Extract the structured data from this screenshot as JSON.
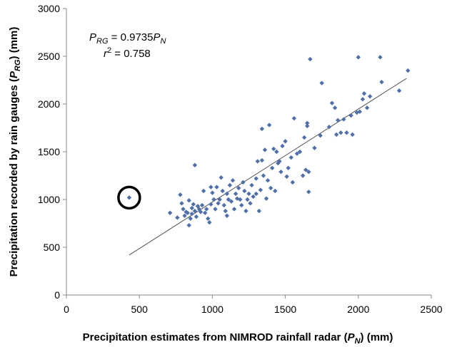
{
  "chart_data": {
    "type": "scatter",
    "xlabel": {
      "pre": "Precipitation estimates from NIMROD rainfall radar (",
      "var": "P",
      "sub": "N",
      "post": ") (mm)"
    },
    "ylabel": {
      "pre": "Precipitation recorded by rain gauges (",
      "var": "P",
      "sub": "RG",
      "post": ") (mm)"
    },
    "xlim": [
      0,
      2500
    ],
    "ylim": [
      0,
      3000
    ],
    "xticks": [
      "0",
      "500",
      "1000",
      "1500",
      "2000",
      "2500"
    ],
    "yticks": [
      "0",
      "500",
      "1000",
      "1500",
      "2000",
      "2500",
      "3000"
    ],
    "grid": false,
    "legend": "none",
    "marker": "diamond",
    "marker_color": "#4F6FA8",
    "equation": {
      "lhs_var": "P",
      "lhs_sub": "RG",
      "middle": " = 0.9735",
      "rhs_var": "P",
      "rhs_sub": "N",
      "r_var": "r",
      "r_sup": "2",
      "r_value": " = 0.758"
    },
    "trendline": {
      "slope": 0.9735,
      "x_start": 430,
      "x_end": 2330,
      "color": "#555555"
    },
    "highlight": {
      "x": 430,
      "y": 1020,
      "shape": "circle"
    },
    "points": [
      [
        430,
        1020
      ],
      [
        710,
        860
      ],
      [
        760,
        810
      ],
      [
        780,
        1050
      ],
      [
        790,
        960
      ],
      [
        800,
        900
      ],
      [
        810,
        830
      ],
      [
        820,
        870
      ],
      [
        830,
        860
      ],
      [
        840,
        730
      ],
      [
        840,
        990
      ],
      [
        850,
        800
      ],
      [
        860,
        910
      ],
      [
        860,
        850
      ],
      [
        870,
        950
      ],
      [
        880,
        880
      ],
      [
        880,
        1360
      ],
      [
        890,
        820
      ],
      [
        900,
        930
      ],
      [
        910,
        900
      ],
      [
        920,
        870
      ],
      [
        930,
        940
      ],
      [
        940,
        1090
      ],
      [
        950,
        860
      ],
      [
        960,
        900
      ],
      [
        970,
        800
      ],
      [
        980,
        760
      ],
      [
        990,
        950
      ],
      [
        990,
        1130
      ],
      [
        1000,
        1070
      ],
      [
        1010,
        1000
      ],
      [
        1020,
        900
      ],
      [
        1030,
        1130
      ],
      [
        1040,
        960
      ],
      [
        1050,
        1000
      ],
      [
        1060,
        1230
      ],
      [
        1070,
        1090
      ],
      [
        1080,
        940
      ],
      [
        1090,
        880
      ],
      [
        1100,
        830
      ],
      [
        1100,
        1060
      ],
      [
        1110,
        1000
      ],
      [
        1120,
        1150
      ],
      [
        1130,
        980
      ],
      [
        1140,
        1200
      ],
      [
        1150,
        900
      ],
      [
        1160,
        1060
      ],
      [
        1170,
        1010
      ],
      [
        1180,
        1120
      ],
      [
        1190,
        1000
      ],
      [
        1200,
        940
      ],
      [
        1210,
        1180
      ],
      [
        1220,
        1090
      ],
      [
        1230,
        880
      ],
      [
        1240,
        1000
      ],
      [
        1250,
        1060
      ],
      [
        1260,
        960
      ],
      [
        1270,
        1150
      ],
      [
        1280,
        1030
      ],
      [
        1300,
        1060
      ],
      [
        1300,
        1220
      ],
      [
        1310,
        1400
      ],
      [
        1320,
        880
      ],
      [
        1330,
        1100
      ],
      [
        1340,
        1410
      ],
      [
        1340,
        1740
      ],
      [
        1350,
        1250
      ],
      [
        1360,
        1520
      ],
      [
        1370,
        1010
      ],
      [
        1380,
        1200
      ],
      [
        1390,
        1780
      ],
      [
        1400,
        1120
      ],
      [
        1410,
        1330
      ],
      [
        1420,
        1530
      ],
      [
        1430,
        1090
      ],
      [
        1440,
        1500
      ],
      [
        1450,
        1380
      ],
      [
        1460,
        1400
      ],
      [
        1470,
        1290
      ],
      [
        1480,
        1560
      ],
      [
        1500,
        1610
      ],
      [
        1510,
        1240
      ],
      [
        1520,
        1330
      ],
      [
        1540,
        1440
      ],
      [
        1550,
        1180
      ],
      [
        1560,
        1850
      ],
      [
        1580,
        1480
      ],
      [
        1600,
        1500
      ],
      [
        1620,
        1250
      ],
      [
        1630,
        1650
      ],
      [
        1640,
        1310
      ],
      [
        1650,
        1800
      ],
      [
        1650,
        1770
      ],
      [
        1660,
        1290
      ],
      [
        1660,
        1080
      ],
      [
        1670,
        2470
      ],
      [
        1700,
        1540
      ],
      [
        1740,
        1670
      ],
      [
        1750,
        2220
      ],
      [
        1800,
        1760
      ],
      [
        1820,
        2010
      ],
      [
        1840,
        1960
      ],
      [
        1850,
        1680
      ],
      [
        1860,
        1830
      ],
      [
        1880,
        1700
      ],
      [
        1900,
        1840
      ],
      [
        1920,
        1700
      ],
      [
        1950,
        1880
      ],
      [
        1960,
        1680
      ],
      [
        1990,
        1910
      ],
      [
        2000,
        2490
      ],
      [
        2010,
        1920
      ],
      [
        2030,
        2050
      ],
      [
        2040,
        2110
      ],
      [
        2060,
        1960
      ],
      [
        2080,
        2080
      ],
      [
        2150,
        2490
      ],
      [
        2160,
        2230
      ],
      [
        2280,
        2140
      ],
      [
        2340,
        2350
      ]
    ]
  }
}
